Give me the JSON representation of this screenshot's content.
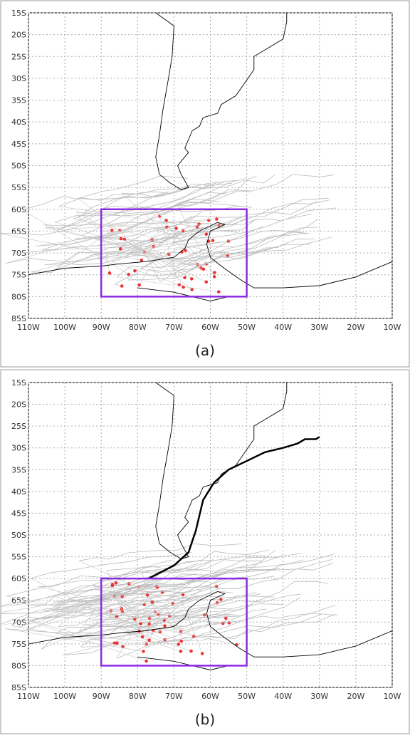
{
  "panels": [
    {
      "label": "(a)"
    },
    {
      "label": "(b)"
    }
  ],
  "lat_ticks": [
    {
      "value": -15,
      "label": "15S"
    },
    {
      "value": -20,
      "label": "20S"
    },
    {
      "value": -25,
      "label": "25S"
    },
    {
      "value": -30,
      "label": "30S"
    },
    {
      "value": -35,
      "label": "35S"
    },
    {
      "value": -40,
      "label": "40S"
    },
    {
      "value": -45,
      "label": "45S"
    },
    {
      "value": -50,
      "label": "50S"
    },
    {
      "value": -55,
      "label": "55S"
    },
    {
      "value": -60,
      "label": "60S"
    },
    {
      "value": -65,
      "label": "65S"
    },
    {
      "value": -70,
      "label": "70S"
    },
    {
      "value": -75,
      "label": "75S"
    },
    {
      "value": -80,
      "label": "80S"
    },
    {
      "value": -85,
      "label": "85S"
    }
  ],
  "lon_ticks": [
    {
      "value": -110,
      "label": "110W"
    },
    {
      "value": -100,
      "label": "100W"
    },
    {
      "value": -90,
      "label": "90W"
    },
    {
      "value": -80,
      "label": "80W"
    },
    {
      "value": -70,
      "label": "70W"
    },
    {
      "value": -60,
      "label": "60W"
    },
    {
      "value": -50,
      "label": "50W"
    },
    {
      "value": -40,
      "label": "40W"
    },
    {
      "value": -30,
      "label": "30W"
    },
    {
      "value": -20,
      "label": "20W"
    },
    {
      "value": -10,
      "label": "10W"
    }
  ],
  "box": {
    "lon": [
      -90,
      -50
    ],
    "lat": [
      -80,
      -60
    ]
  }
}
